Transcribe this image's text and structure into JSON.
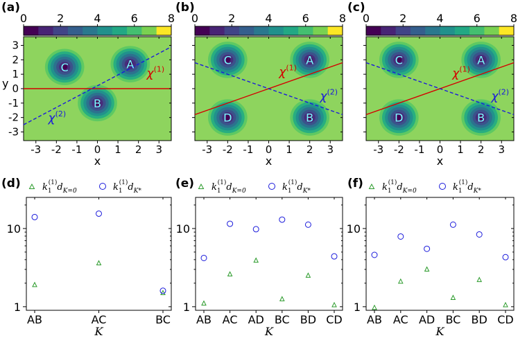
{
  "colors": {
    "bg": "#8ed45e",
    "ring": [
      "#440154",
      "#472d7b",
      "#3b528b",
      "#2c728e",
      "#21918c",
      "#28ae80",
      "#5ec962",
      "#8ed45e"
    ],
    "colorbar": [
      "#440154",
      "#482475",
      "#414487",
      "#355f8d",
      "#2a788e",
      "#21918c",
      "#22a884",
      "#44bf70",
      "#7ad151",
      "#fde725"
    ],
    "red": "#d40000",
    "blue": "#1a1adb",
    "green": "#2a9a2a"
  },
  "chart_data": [
    {
      "type": "heatmap",
      "panel_label": "(a)",
      "xlabel": "x",
      "ylabel": "y",
      "xlim": [
        -3.6,
        3.6
      ],
      "ylim": [
        -3.6,
        3.6
      ],
      "xticks": [
        "-3",
        "-2",
        "-1",
        "0",
        "1",
        "2",
        "3"
      ],
      "yticks": [
        "3",
        "2",
        "1",
        "0",
        "-1",
        "-2",
        "-3"
      ],
      "colorbar": {
        "range": [
          0,
          8
        ],
        "ticks": [
          "0",
          "2",
          "4",
          "6",
          "8"
        ]
      },
      "regions": [
        {
          "name": "C",
          "x": -1.6,
          "y": 1.5
        },
        {
          "name": "A",
          "x": 1.6,
          "y": 1.7
        },
        {
          "name": "B",
          "x": 0.0,
          "y": -1.0
        }
      ],
      "lines": [
        {
          "name": "chi(1)",
          "label_main": "χ",
          "label_sup": "(1)",
          "slope": 0,
          "intercept": 0,
          "style": "solid",
          "color": "red",
          "label_x": 2.4,
          "label_y": 0.8
        },
        {
          "name": "chi(2)",
          "label_main": "χ",
          "label_sup": "(2)",
          "slope": 0.75,
          "intercept": 0.2,
          "style": "dashed",
          "color": "blue",
          "label_x": -2.4,
          "label_y": -2.3
        }
      ]
    },
    {
      "type": "heatmap",
      "panel_label": "(b)",
      "xlabel": "x",
      "ylabel": "",
      "xlim": [
        -3.6,
        3.6
      ],
      "ylim": [
        -3.6,
        3.6
      ],
      "xticks": [
        "-3",
        "-2",
        "-1",
        "0",
        "1",
        "2",
        "3"
      ],
      "colorbar": {
        "range": [
          0,
          8
        ],
        "ticks": [
          "0",
          "2",
          "4",
          "6",
          "8"
        ]
      },
      "regions": [
        {
          "name": "C",
          "x": -2.0,
          "y": 2.0
        },
        {
          "name": "A",
          "x": 2.0,
          "y": 2.0
        },
        {
          "name": "D",
          "x": -2.0,
          "y": -2.0
        },
        {
          "name": "B",
          "x": 2.0,
          "y": -2.0
        }
      ],
      "lines": [
        {
          "name": "chi(1)",
          "label_main": "χ",
          "label_sup": "(1)",
          "slope": 0.5,
          "intercept": 0,
          "style": "solid",
          "color": "red",
          "label_x": 0.5,
          "label_y": 0.9
        },
        {
          "name": "chi(2)",
          "label_main": "χ",
          "label_sup": "(2)",
          "slope": -0.5,
          "intercept": 0,
          "style": "dashed",
          "color": "blue",
          "label_x": 2.5,
          "label_y": -0.8
        }
      ]
    },
    {
      "type": "heatmap",
      "panel_label": "(c)",
      "xlabel": "x",
      "ylabel": "",
      "xlim": [
        -3.6,
        3.6
      ],
      "ylim": [
        -3.6,
        3.6
      ],
      "xticks": [
        "-3",
        "-2",
        "-1",
        "0",
        "1",
        "2",
        "3"
      ],
      "colorbar": {
        "range": [
          0,
          8
        ],
        "ticks": [
          "0",
          "2",
          "4",
          "6",
          "8"
        ]
      },
      "regions": [
        {
          "name": "C",
          "x": -2.0,
          "y": 2.0
        },
        {
          "name": "A",
          "x": 2.0,
          "y": 2.0
        },
        {
          "name": "D",
          "x": -2.0,
          "y": -2.0
        },
        {
          "name": "B",
          "x": 2.0,
          "y": -2.0
        }
      ],
      "lines": [
        {
          "name": "chi(1)",
          "label_main": "χ",
          "label_sup": "(1)",
          "slope": 0.5,
          "intercept": 0,
          "style": "solid",
          "color": "red",
          "label_x": 0.6,
          "label_y": 0.8
        },
        {
          "name": "chi(2)",
          "label_main": "χ",
          "label_sup": "(2)",
          "slope": -0.5,
          "intercept": 0,
          "style": "dashed",
          "color": "blue",
          "label_x": 2.5,
          "label_y": -0.8
        }
      ]
    },
    {
      "type": "scatter",
      "panel_label": "(d)",
      "xlabel": "K",
      "yscale": "log",
      "ylim": [
        0.9,
        25
      ],
      "yticks": [
        "1",
        "10"
      ],
      "categories": [
        "AB",
        "AC",
        "BC"
      ],
      "legend": [
        {
          "symbol": "triangle",
          "label": "k",
          "sup": "(1)",
          "sub": "1",
          "tail": "d",
          "tail_sub": "K=0"
        },
        {
          "symbol": "circle",
          "label": "k",
          "sup": "(1)",
          "sub": "1",
          "tail": "d",
          "tail_sub": "K*"
        }
      ],
      "series": [
        {
          "name": "k1(1) d_K=0",
          "marker": "triangle",
          "values": [
            1.9,
            3.6,
            1.5
          ]
        },
        {
          "name": "k1(1) d_K*",
          "marker": "circle",
          "values": [
            14,
            15.5,
            1.6
          ]
        }
      ]
    },
    {
      "type": "scatter",
      "panel_label": "(e)",
      "xlabel": "K",
      "yscale": "log",
      "ylim": [
        0.9,
        25
      ],
      "yticks": [
        "1",
        "10"
      ],
      "categories": [
        "AB",
        "AC",
        "AD",
        "BC",
        "BD",
        "CD"
      ],
      "legend": [
        {
          "symbol": "triangle",
          "label": "k",
          "sup": "(1)",
          "sub": "1",
          "tail": "d",
          "tail_sub": "K=0"
        },
        {
          "symbol": "circle",
          "label": "k",
          "sup": "(1)",
          "sub": "1",
          "tail": "d",
          "tail_sub": "K*"
        }
      ],
      "series": [
        {
          "name": "k1(1) d_K=0",
          "marker": "triangle",
          "values": [
            1.1,
            2.6,
            3.9,
            1.25,
            2.5,
            1.05
          ]
        },
        {
          "name": "k1(1) d_K*",
          "marker": "circle",
          "values": [
            4.2,
            11.5,
            9.8,
            13,
            11.2,
            4.4
          ]
        }
      ]
    },
    {
      "type": "scatter",
      "panel_label": "(f)",
      "xlabel": "K",
      "yscale": "log",
      "ylim": [
        0.9,
        25
      ],
      "yticks": [
        "1",
        "10"
      ],
      "categories": [
        "AB",
        "AC",
        "AD",
        "BC",
        "BD",
        "CD"
      ],
      "legend": [
        {
          "symbol": "triangle",
          "label": "k",
          "sup": "(1)",
          "sub": "1",
          "tail": "d",
          "tail_sub": "K=0"
        },
        {
          "symbol": "circle",
          "label": "k",
          "sup": "(1)",
          "sub": "1",
          "tail": "d",
          "tail_sub": "K*"
        }
      ],
      "series": [
        {
          "name": "k1(1) d_K=0",
          "marker": "triangle",
          "values": [
            0.97,
            2.1,
            3.0,
            1.3,
            2.2,
            1.05
          ]
        },
        {
          "name": "k1(1) d_K*",
          "marker": "circle",
          "values": [
            4.6,
            7.9,
            5.5,
            11.2,
            8.4,
            4.3
          ]
        }
      ]
    }
  ]
}
